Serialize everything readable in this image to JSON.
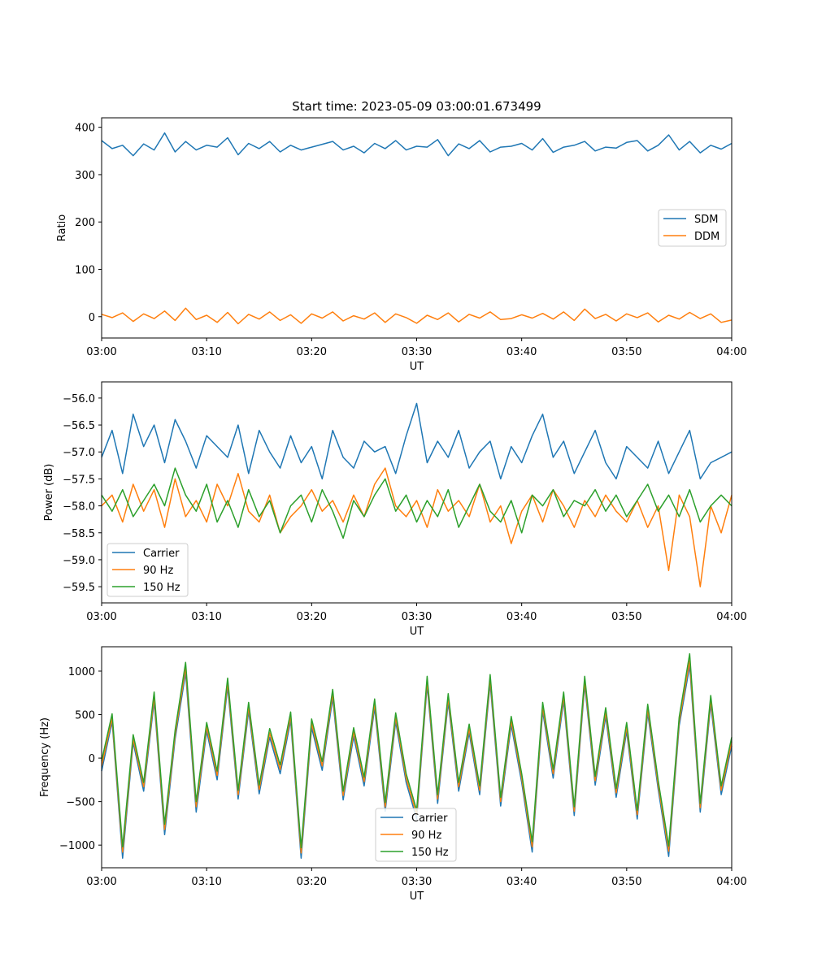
{
  "colors": {
    "blue": "#1f77b4",
    "orange": "#ff7f0e",
    "green": "#2ca02c"
  },
  "chart_data": [
    {
      "type": "line",
      "title": "Start time: 2023-05-09 03:00:01.673499",
      "xlabel": "UT",
      "ylabel": "Ratio",
      "xlim": [
        "03:00",
        "04:00"
      ],
      "ylim": [
        -45,
        420
      ],
      "x_ticks": [
        "03:00",
        "03:10",
        "03:20",
        "03:30",
        "03:40",
        "03:50",
        "04:00"
      ],
      "y_ticks": [
        "400",
        "300",
        "200",
        "100",
        "0"
      ],
      "y_tick_values": [
        400,
        300,
        200,
        100,
        0
      ],
      "legend_position": "center-right",
      "grid": false,
      "series": [
        {
          "name": "SDM",
          "color": "#1f77b4",
          "x_minutes": [
            0,
            1,
            2,
            3,
            4,
            5,
            6,
            7,
            8,
            9,
            10,
            11,
            12,
            13,
            14,
            15,
            16,
            17,
            18,
            19,
            20,
            21,
            22,
            23,
            24,
            25,
            26,
            27,
            28,
            29,
            30,
            31,
            32,
            33,
            34,
            35,
            36,
            37,
            38,
            39,
            40,
            41,
            42,
            43,
            44,
            45,
            46,
            47,
            48,
            49,
            50,
            51,
            52,
            53,
            54,
            55,
            56,
            57,
            58,
            59,
            60
          ],
          "values": [
            372,
            355,
            362,
            340,
            365,
            352,
            388,
            348,
            370,
            352,
            362,
            358,
            378,
            342,
            366,
            355,
            370,
            348,
            362,
            352,
            358,
            364,
            370,
            352,
            360,
            346,
            366,
            355,
            372,
            352,
            360,
            358,
            374,
            340,
            365,
            355,
            372,
            348,
            358,
            360,
            366,
            352,
            376,
            347,
            358,
            362,
            370,
            350,
            358,
            356,
            368,
            372,
            350,
            362,
            384,
            352,
            370,
            346,
            362,
            354,
            366
          ]
        },
        {
          "name": "DDM",
          "color": "#ff7f0e",
          "x_minutes": [
            0,
            1,
            2,
            3,
            4,
            5,
            6,
            7,
            8,
            9,
            10,
            11,
            12,
            13,
            14,
            15,
            16,
            17,
            18,
            19,
            20,
            21,
            22,
            23,
            24,
            25,
            26,
            27,
            28,
            29,
            30,
            31,
            32,
            33,
            34,
            35,
            36,
            37,
            38,
            39,
            40,
            41,
            42,
            43,
            44,
            45,
            46,
            47,
            48,
            49,
            50,
            51,
            52,
            53,
            54,
            55,
            56,
            57,
            58,
            59,
            60
          ],
          "values": [
            5,
            -2,
            8,
            -10,
            6,
            -4,
            12,
            -8,
            18,
            -6,
            3,
            -12,
            9,
            -15,
            5,
            -5,
            10,
            -8,
            4,
            -14,
            6,
            -3,
            10,
            -9,
            2,
            -5,
            8,
            -12,
            6,
            -2,
            -14,
            3,
            -6,
            8,
            -11,
            5,
            -3,
            10,
            -6,
            -4,
            4,
            -3,
            7,
            -5,
            10,
            -8,
            16,
            -4,
            5,
            -9,
            6,
            -2,
            8,
            -11,
            3,
            -5,
            9,
            -4,
            6,
            -12,
            -7
          ]
        }
      ]
    },
    {
      "type": "line",
      "title": "",
      "xlabel": "UT",
      "ylabel": "Power (dB)",
      "xlim": [
        "03:00",
        "04:00"
      ],
      "ylim": [
        -59.8,
        -55.7
      ],
      "x_ticks": [
        "03:00",
        "03:10",
        "03:20",
        "03:30",
        "03:40",
        "03:50",
        "04:00"
      ],
      "y_ticks": [
        "−56.0",
        "−56.5",
        "−57.0",
        "−57.5",
        "−58.0",
        "−58.5",
        "−59.0",
        "−59.5"
      ],
      "y_tick_values": [
        -56.0,
        -56.5,
        -57.0,
        -57.5,
        -58.0,
        -58.5,
        -59.0,
        -59.5
      ],
      "legend_position": "lower-left",
      "grid": false,
      "series": [
        {
          "name": "Carrier",
          "color": "#1f77b4",
          "x_minutes": [
            0,
            1,
            2,
            3,
            4,
            5,
            6,
            7,
            8,
            9,
            10,
            11,
            12,
            13,
            14,
            15,
            16,
            17,
            18,
            19,
            20,
            21,
            22,
            23,
            24,
            25,
            26,
            27,
            28,
            29,
            30,
            31,
            32,
            33,
            34,
            35,
            36,
            37,
            38,
            39,
            40,
            41,
            42,
            43,
            44,
            45,
            46,
            47,
            48,
            49,
            50,
            51,
            52,
            53,
            54,
            55,
            56,
            57,
            58,
            59,
            60
          ],
          "values": [
            -57.1,
            -56.6,
            -57.4,
            -56.3,
            -56.9,
            -56.5,
            -57.2,
            -56.4,
            -56.8,
            -57.3,
            -56.7,
            -56.9,
            -57.1,
            -56.5,
            -57.4,
            -56.6,
            -57.0,
            -57.3,
            -56.7,
            -57.2,
            -56.9,
            -57.5,
            -56.6,
            -57.1,
            -57.3,
            -56.8,
            -57.0,
            -56.9,
            -57.4,
            -56.7,
            -56.1,
            -57.2,
            -56.8,
            -57.1,
            -56.6,
            -57.3,
            -57.0,
            -56.8,
            -57.5,
            -56.9,
            -57.2,
            -56.7,
            -56.3,
            -57.1,
            -56.8,
            -57.4,
            -57.0,
            -56.6,
            -57.2,
            -57.5,
            -56.9,
            -57.1,
            -57.3,
            -56.8,
            -57.4,
            -57.0,
            -56.6,
            -57.5,
            -57.2,
            -57.1,
            -57.0
          ]
        },
        {
          "name": "90 Hz",
          "color": "#ff7f0e",
          "x_minutes": [
            0,
            1,
            2,
            3,
            4,
            5,
            6,
            7,
            8,
            9,
            10,
            11,
            12,
            13,
            14,
            15,
            16,
            17,
            18,
            19,
            20,
            21,
            22,
            23,
            24,
            25,
            26,
            27,
            28,
            29,
            30,
            31,
            32,
            33,
            34,
            35,
            36,
            37,
            38,
            39,
            40,
            41,
            42,
            43,
            44,
            45,
            46,
            47,
            48,
            49,
            50,
            51,
            52,
            53,
            54,
            55,
            56,
            57,
            58,
            59,
            60
          ],
          "values": [
            -58.0,
            -57.8,
            -58.3,
            -57.6,
            -58.1,
            -57.7,
            -58.4,
            -57.5,
            -58.2,
            -57.9,
            -58.3,
            -57.6,
            -58.0,
            -57.4,
            -58.1,
            -58.3,
            -57.8,
            -58.5,
            -58.2,
            -58.0,
            -57.7,
            -58.1,
            -57.9,
            -58.3,
            -57.8,
            -58.2,
            -57.6,
            -57.3,
            -58.0,
            -58.2,
            -57.9,
            -58.4,
            -57.7,
            -58.1,
            -57.9,
            -58.2,
            -57.6,
            -58.3,
            -58.0,
            -58.7,
            -58.1,
            -57.8,
            -58.3,
            -57.7,
            -58.0,
            -58.4,
            -57.9,
            -58.2,
            -57.8,
            -58.1,
            -58.3,
            -57.9,
            -58.4,
            -58.0,
            -59.2,
            -57.8,
            -58.2,
            -59.5,
            -58.0,
            -58.5,
            -57.8
          ]
        },
        {
          "name": "150 Hz",
          "color": "#2ca02c",
          "x_minutes": [
            0,
            1,
            2,
            3,
            4,
            5,
            6,
            7,
            8,
            9,
            10,
            11,
            12,
            13,
            14,
            15,
            16,
            17,
            18,
            19,
            20,
            21,
            22,
            23,
            24,
            25,
            26,
            27,
            28,
            29,
            30,
            31,
            32,
            33,
            34,
            35,
            36,
            37,
            38,
            39,
            40,
            41,
            42,
            43,
            44,
            45,
            46,
            47,
            48,
            49,
            50,
            51,
            52,
            53,
            54,
            55,
            56,
            57,
            58,
            59,
            60
          ],
          "values": [
            -57.8,
            -58.1,
            -57.7,
            -58.2,
            -57.9,
            -57.6,
            -58.0,
            -57.3,
            -57.8,
            -58.1,
            -57.6,
            -58.3,
            -57.9,
            -58.4,
            -57.7,
            -58.2,
            -57.9,
            -58.5,
            -58.0,
            -57.8,
            -58.3,
            -57.7,
            -58.1,
            -58.6,
            -57.9,
            -58.2,
            -57.8,
            -57.5,
            -58.1,
            -57.8,
            -58.3,
            -57.9,
            -58.2,
            -57.7,
            -58.4,
            -58.0,
            -57.6,
            -58.1,
            -58.3,
            -57.9,
            -58.5,
            -57.8,
            -58.0,
            -57.7,
            -58.2,
            -57.9,
            -58.0,
            -57.7,
            -58.1,
            -57.8,
            -58.2,
            -57.9,
            -57.6,
            -58.1,
            -57.8,
            -58.2,
            -57.7,
            -58.3,
            -58.0,
            -57.8,
            -58.0
          ]
        }
      ]
    },
    {
      "type": "line",
      "title": "",
      "xlabel": "UT",
      "ylabel": "Frequency (Hz)",
      "xlim": [
        "03:00",
        "04:00"
      ],
      "ylim": [
        -1260,
        1280
      ],
      "x_ticks": [
        "03:00",
        "03:10",
        "03:20",
        "03:30",
        "03:40",
        "03:50",
        "04:00"
      ],
      "y_ticks": [
        "1000",
        "500",
        "0",
        "−500",
        "−1000"
      ],
      "y_tick_values": [
        1000,
        500,
        0,
        -500,
        -1000
      ],
      "legend_position": "lower-center",
      "grid": false,
      "series": [
        {
          "name": "Carrier",
          "color": "#1f77b4",
          "x_minutes": [
            0,
            1,
            2,
            3,
            4,
            5,
            6,
            7,
            8,
            9,
            10,
            11,
            12,
            13,
            14,
            15,
            16,
            17,
            18,
            19,
            20,
            21,
            22,
            23,
            24,
            25,
            26,
            27,
            28,
            29,
            30,
            31,
            32,
            33,
            34,
            35,
            36,
            37,
            38,
            39,
            40,
            41,
            42,
            43,
            44,
            45,
            46,
            47,
            48,
            49,
            50,
            51,
            52,
            53,
            54,
            55,
            56,
            57,
            58,
            59,
            60
          ],
          "values": [
            -150,
            420,
            -1150,
            180,
            -380,
            650,
            -880,
            220,
            980,
            -620,
            310,
            -250,
            820,
            -470,
            540,
            -410,
            240,
            -180,
            430,
            -1150,
            350,
            -140,
            690,
            -480,
            250,
            -320,
            580,
            -610,
            420,
            -280,
            -700,
            840,
            -520,
            640,
            -380,
            290,
            -420,
            860,
            -550,
            380,
            -280,
            -1080,
            540,
            -230,
            660,
            -660,
            840,
            -310,
            480,
            -450,
            310,
            -700,
            520,
            -360,
            -1130,
            370,
            1060,
            -620,
            620,
            -420,
            140
          ]
        },
        {
          "name": "90 Hz",
          "color": "#ff7f0e",
          "x_minutes": [
            0,
            1,
            2,
            3,
            4,
            5,
            6,
            7,
            8,
            9,
            10,
            11,
            12,
            13,
            14,
            15,
            16,
            17,
            18,
            19,
            20,
            21,
            22,
            23,
            24,
            25,
            26,
            27,
            28,
            29,
            30,
            31,
            32,
            33,
            34,
            35,
            36,
            37,
            38,
            39,
            40,
            41,
            42,
            43,
            44,
            45,
            46,
            47,
            48,
            49,
            50,
            51,
            52,
            53,
            54,
            55,
            56,
            57,
            58,
            59,
            60
          ],
          "values": [
            -90,
            460,
            -1080,
            220,
            -330,
            700,
            -820,
            270,
            1040,
            -560,
            360,
            -200,
            870,
            -420,
            590,
            -360,
            290,
            -130,
            480,
            -1090,
            400,
            -90,
            740,
            -430,
            300,
            -270,
            630,
            -560,
            470,
            -230,
            -650,
            890,
            -470,
            690,
            -330,
            340,
            -370,
            910,
            -500,
            430,
            -230,
            -1020,
            590,
            -180,
            710,
            -610,
            890,
            -260,
            530,
            -400,
            360,
            -650,
            570,
            -310,
            -1070,
            420,
            1120,
            -570,
            670,
            -370,
            190
          ]
        },
        {
          "name": "150 Hz",
          "color": "#2ca02c",
          "x_minutes": [
            0,
            1,
            2,
            3,
            4,
            5,
            6,
            7,
            8,
            9,
            10,
            11,
            12,
            13,
            14,
            15,
            16,
            17,
            18,
            19,
            20,
            21,
            22,
            23,
            24,
            25,
            26,
            27,
            28,
            29,
            30,
            31,
            32,
            33,
            34,
            35,
            36,
            37,
            38,
            39,
            40,
            41,
            42,
            43,
            44,
            45,
            46,
            47,
            48,
            49,
            50,
            51,
            52,
            53,
            54,
            55,
            56,
            57,
            58,
            59,
            60
          ],
          "values": [
            -30,
            510,
            -1020,
            270,
            -280,
            760,
            -760,
            320,
            1100,
            -500,
            410,
            -150,
            920,
            -370,
            640,
            -310,
            340,
            -80,
            530,
            -1030,
            450,
            -40,
            790,
            -380,
            350,
            -220,
            680,
            -510,
            520,
            -180,
            -600,
            940,
            -420,
            740,
            -280,
            390,
            -320,
            960,
            -450,
            480,
            -180,
            -960,
            640,
            -130,
            760,
            -560,
            940,
            -210,
            580,
            -350,
            410,
            -600,
            620,
            -260,
            -1010,
            470,
            1200,
            -520,
            720,
            -320,
            240
          ]
        }
      ]
    }
  ]
}
